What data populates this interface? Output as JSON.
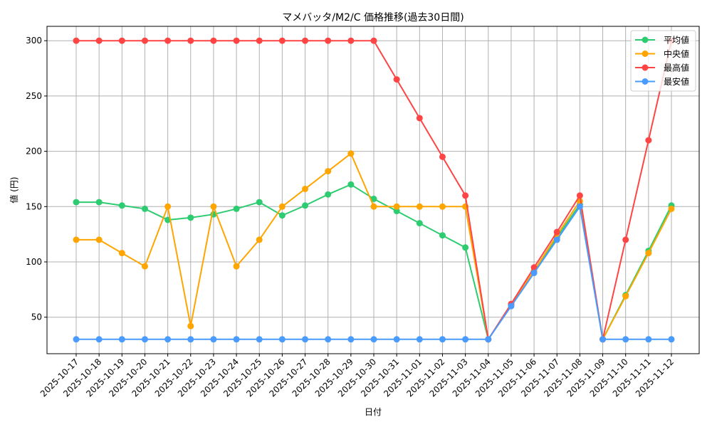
{
  "chart_data": {
    "type": "line",
    "title": "マメバッタ/M2/C 価格推移(過去30日間)",
    "xlabel": "日付",
    "ylabel": "値 (円)",
    "ylim": [
      17,
      313
    ],
    "yticks": [
      50,
      100,
      150,
      200,
      250,
      300
    ],
    "grid": true,
    "legend_position": "top-right",
    "categories": [
      "2025-10-17",
      "2025-10-18",
      "2025-10-19",
      "2025-10-20",
      "2025-10-21",
      "2025-10-22",
      "2025-10-23",
      "2025-10-24",
      "2025-10-25",
      "2025-10-26",
      "2025-10-27",
      "2025-10-28",
      "2025-10-29",
      "2025-10-30",
      "2025-10-31",
      "2025-11-01",
      "2025-11-02",
      "2025-11-03",
      "2025-11-04",
      "2025-11-05",
      "2025-11-06",
      "2025-11-07",
      "2025-11-08",
      "2025-11-09",
      "2025-11-10",
      "2025-11-11",
      "2025-11-12"
    ],
    "series": [
      {
        "name": "平均値",
        "color": "#2ecc71",
        "values": [
          154,
          154,
          151,
          148,
          138,
          140,
          143,
          148,
          154,
          142,
          151,
          161,
          170,
          157,
          146,
          135,
          124,
          113,
          30,
          61,
          91,
          122,
          152,
          30,
          70,
          110,
          151
        ]
      },
      {
        "name": "中央値",
        "color": "#ffa500",
        "values": [
          120,
          120,
          108,
          96,
          150,
          42,
          150,
          96,
          120,
          150,
          166,
          182,
          198,
          150,
          150,
          150,
          150,
          150,
          30,
          61,
          92,
          124,
          155,
          30,
          69,
          108,
          148
        ]
      },
      {
        "name": "最高値",
        "color": "#ff4444",
        "values": [
          300,
          300,
          300,
          300,
          300,
          300,
          300,
          300,
          300,
          300,
          300,
          300,
          300,
          300,
          265,
          230,
          195,
          160,
          30,
          62,
          95,
          127,
          160,
          30,
          120,
          210,
          300
        ]
      },
      {
        "name": "最安値",
        "color": "#4a9bff",
        "values": [
          30,
          30,
          30,
          30,
          30,
          30,
          30,
          30,
          30,
          30,
          30,
          30,
          30,
          30,
          30,
          30,
          30,
          30,
          30,
          60,
          90,
          120,
          150,
          30,
          30,
          30,
          30
        ]
      }
    ]
  }
}
